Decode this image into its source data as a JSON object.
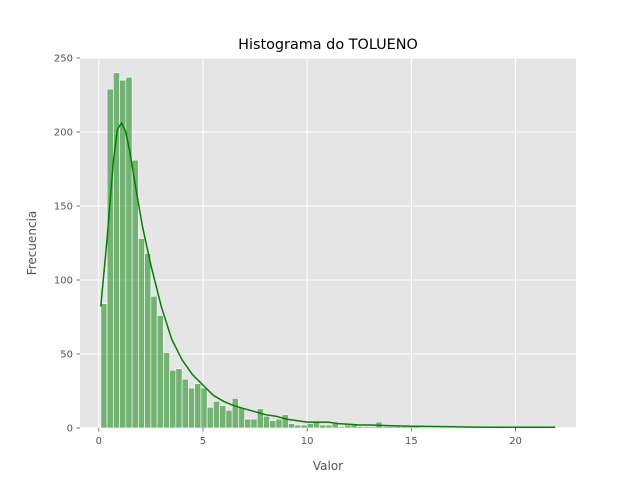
{
  "chart_data": {
    "type": "bar",
    "subtype": "histogram-with-kde",
    "title": "Histograma do TOLUENO",
    "xlabel": "Valor",
    "ylabel": "Frecuencia",
    "xlim": [
      -0.9,
      22.9
    ],
    "ylim": [
      0,
      250
    ],
    "xticks": [
      0,
      5,
      10,
      15,
      20
    ],
    "yticks": [
      0,
      50,
      100,
      150,
      200,
      250
    ],
    "grid": true,
    "style": "ggplot",
    "colors": {
      "bars": "#008000",
      "kde_line": "#008000",
      "axes_background": "#E5E5E5",
      "grid": "#FFFFFF"
    },
    "bin_start": 0.1,
    "bin_width": 0.3,
    "counts": [
      84,
      229,
      240,
      235,
      237,
      181,
      128,
      118,
      89,
      76,
      51,
      39,
      40,
      33,
      27,
      30,
      27,
      14,
      18,
      15,
      12,
      20,
      14,
      6,
      6,
      13,
      8,
      5,
      6,
      9,
      3,
      2,
      2,
      3,
      4,
      2,
      2,
      3,
      1,
      2,
      2,
      1,
      1,
      1,
      4,
      1,
      1,
      1,
      1,
      1,
      1,
      0,
      0,
      0,
      0,
      0,
      0,
      0,
      1,
      0,
      0,
      0,
      0,
      0,
      0,
      1,
      0,
      0,
      0,
      0,
      0,
      0
    ],
    "kde": {
      "x": [
        0.1,
        0.4,
        0.7,
        0.9,
        1.1,
        1.3,
        1.5,
        1.8,
        2.1,
        2.5,
        3.0,
        3.5,
        4.0,
        4.5,
        5.0,
        5.5,
        6.0,
        6.5,
        7.0,
        7.5,
        8.0,
        8.5,
        9.0,
        9.5,
        10.0,
        10.5,
        11.0,
        11.5,
        12.0,
        12.5,
        13.0,
        14.0,
        15.0,
        16.0,
        17.0,
        18.0,
        19.0,
        20.0,
        21.0,
        21.9
      ],
      "y": [
        82,
        128,
        180,
        202,
        206,
        200,
        186,
        160,
        136,
        110,
        82,
        60,
        46,
        36,
        29,
        22,
        18,
        15,
        13,
        11,
        9,
        8,
        6,
        5,
        4,
        4,
        4,
        3,
        2.5,
        2,
        2,
        1.5,
        1.2,
        1,
        0.8,
        0.6,
        0.5,
        0.5,
        0.5,
        0.5
      ]
    }
  }
}
